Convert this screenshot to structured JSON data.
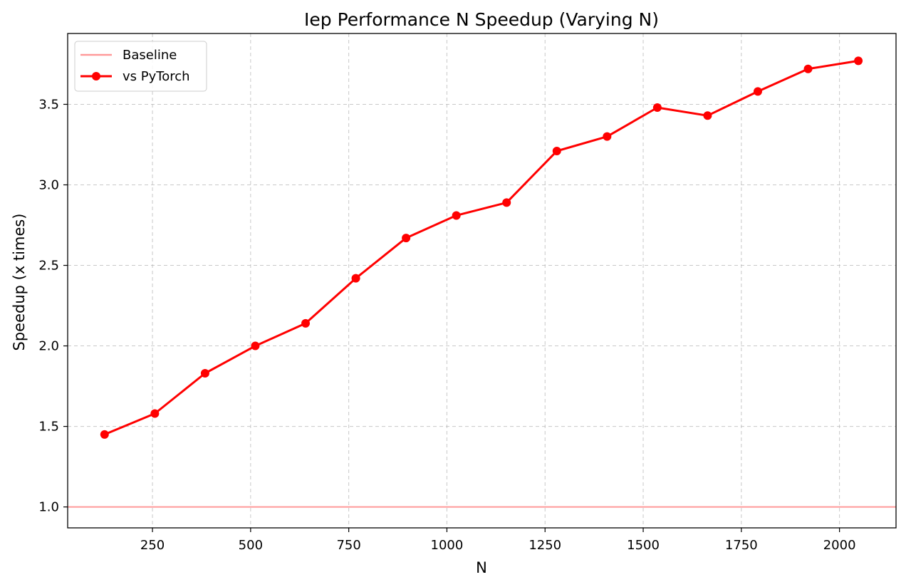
{
  "chart_data": {
    "type": "line",
    "title": "Iep Performance N Speedup (Varying N)",
    "xlabel": "N",
    "ylabel": "Speedup (x times)",
    "xlim": [
      34,
      2144
    ],
    "ylim": [
      0.87,
      3.94
    ],
    "xticks": [
      250,
      500,
      750,
      1000,
      1250,
      1500,
      1750,
      2000
    ],
    "yticks": [
      1.0,
      1.5,
      2.0,
      2.5,
      3.0,
      3.5
    ],
    "xtick_labels": [
      "250",
      "500",
      "750",
      "1000",
      "1250",
      "1500",
      "1750",
      "2000"
    ],
    "ytick_labels": [
      "1.0",
      "1.5",
      "2.0",
      "2.5",
      "3.0",
      "3.5"
    ],
    "grid": true,
    "legend_position": "top-left",
    "baseline": {
      "name": "Baseline",
      "value": 1.0,
      "color": "#ff9999"
    },
    "series": [
      {
        "name": "vs PyTorch",
        "color": "#ff0000",
        "marker": "circle",
        "x": [
          128,
          256,
          384,
          512,
          640,
          768,
          896,
          1024,
          1152,
          1280,
          1408,
          1536,
          1664,
          1792,
          1920,
          2048
        ],
        "values": [
          1.45,
          1.58,
          1.83,
          2.0,
          2.14,
          2.42,
          2.67,
          2.81,
          2.89,
          3.21,
          3.3,
          3.48,
          3.43,
          3.58,
          3.72,
          3.77
        ]
      }
    ]
  }
}
